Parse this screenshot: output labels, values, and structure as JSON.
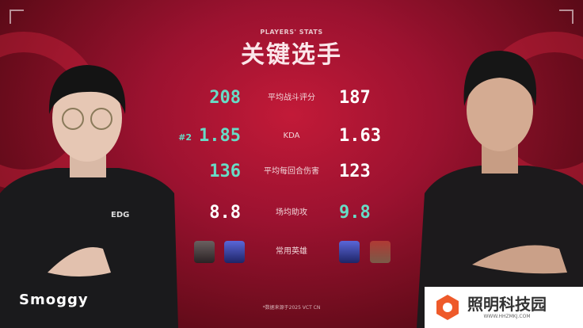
{
  "header": {
    "subtitle": "PLAYERS' STATS",
    "title": "关键选手"
  },
  "stats": [
    {
      "label": "平均战斗评分",
      "left": "208",
      "right": "187",
      "left_color": "teal",
      "right_color": "white"
    },
    {
      "label": "KDA",
      "left": "1.85",
      "right": "1.63",
      "left_rank": "#2",
      "left_color": "teal",
      "right_color": "white"
    },
    {
      "label": "平均每回合伤害",
      "left": "136",
      "right": "123",
      "left_color": "teal",
      "right_color": "white"
    },
    {
      "label": "场均助攻",
      "left": "8.8",
      "right": "9.8",
      "left_color": "white",
      "right_color": "teal"
    }
  ],
  "agents": {
    "label": "常用英雄",
    "left": [
      "agent-viper-icon",
      "agent-omen-icon"
    ],
    "right": [
      "agent-omen-icon",
      "agent-brimstone-icon"
    ]
  },
  "left_player": {
    "name": "Smoggy",
    "jersey": "EDG"
  },
  "footer": "*数据来源于2025 VCT CN",
  "watermark": {
    "name": "照明科技园",
    "url": "WWW.HHZMKJ.COM"
  },
  "colors": {
    "accent": "#67dcc6",
    "background": "#9c1230"
  }
}
